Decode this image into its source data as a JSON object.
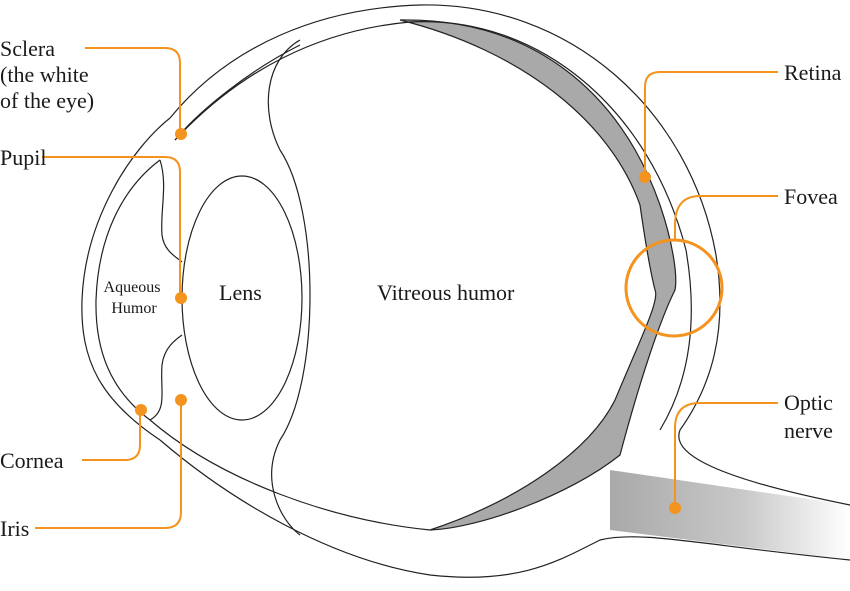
{
  "colors": {
    "accent": "#f4931e",
    "retina_fill": "#a9a9a9",
    "outline": "#222222",
    "background": "#ffffff"
  },
  "labels": {
    "sclera": [
      "Sclera",
      "(the white",
      "of the eye)"
    ],
    "pupil": "Pupil",
    "aqueous_humor": [
      "Aqueous",
      "Humor"
    ],
    "lens": "Lens",
    "vitreous_humor": "Vitreous humor",
    "cornea": "Cornea",
    "iris": "Iris",
    "retina": "Retina",
    "fovea": "Fovea",
    "optic_nerve": [
      "Optic",
      "nerve"
    ]
  }
}
